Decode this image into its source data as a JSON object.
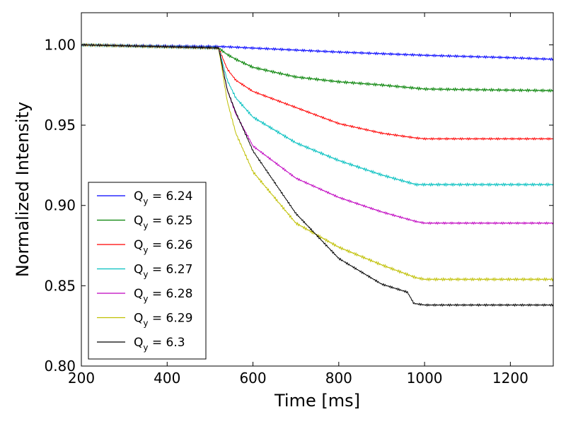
{
  "chart_data": {
    "type": "line",
    "title": "",
    "xlabel": "Time [ms]",
    "ylabel": "Normalized Intensity",
    "xlim": [
      200,
      1300
    ],
    "ylim": [
      0.8,
      1.02
    ],
    "xticks": [
      200,
      400,
      600,
      800,
      1000,
      1200
    ],
    "yticks": [
      0.8,
      0.85,
      0.9,
      0.95,
      1.0
    ],
    "xtick_labels": [
      "200",
      "400",
      "600",
      "800",
      "1000",
      "1200"
    ],
    "ytick_labels": [
      "0.80",
      "0.85",
      "0.90",
      "0.95",
      "1.00"
    ],
    "grid": false,
    "legend_position": "lower-left",
    "series": [
      {
        "name": "Q_y = 6.24",
        "label_main": "Q",
        "label_sub": "y",
        "label_value": " = 6.24",
        "color": "#0000ff",
        "noise": 0.0007,
        "x": [
          200,
          520,
          600,
          800,
          1000,
          1200,
          1300
        ],
        "y": [
          1.0,
          0.999,
          0.998,
          0.9955,
          0.9935,
          0.992,
          0.991
        ]
      },
      {
        "name": "Q_y = 6.25",
        "label_main": "Q",
        "label_sub": "y",
        "label_value": " = 6.25",
        "color": "#008000",
        "noise": 0.0008,
        "x": [
          200,
          520,
          540,
          560,
          600,
          700,
          800,
          900,
          980,
          1000,
          1200,
          1300
        ],
        "y": [
          1.0,
          0.998,
          0.994,
          0.991,
          0.986,
          0.98,
          0.977,
          0.975,
          0.973,
          0.9725,
          0.9718,
          0.9715
        ]
      },
      {
        "name": "Q_y = 6.26",
        "label_main": "Q",
        "label_sub": "y",
        "label_value": " = 6.26",
        "color": "#ff0000",
        "noise": 0.0006,
        "x": [
          200,
          520,
          540,
          560,
          600,
          700,
          800,
          900,
          980,
          1000,
          1200,
          1300
        ],
        "y": [
          1.0,
          0.998,
          0.985,
          0.978,
          0.971,
          0.961,
          0.951,
          0.945,
          0.942,
          0.9415,
          0.9415,
          0.9415
        ]
      },
      {
        "name": "Q_y = 6.27",
        "label_main": "Q",
        "label_sub": "y",
        "label_value": " = 6.27",
        "color": "#00bfbf",
        "noise": 0.0008,
        "x": [
          200,
          520,
          540,
          560,
          600,
          700,
          800,
          900,
          980,
          1000,
          1200,
          1300
        ],
        "y": [
          1.0,
          0.998,
          0.978,
          0.967,
          0.955,
          0.939,
          0.928,
          0.919,
          0.913,
          0.913,
          0.913,
          0.913
        ]
      },
      {
        "name": "Q_y = 6.28",
        "label_main": "Q",
        "label_sub": "y",
        "label_value": " = 6.28",
        "color": "#bf00bf",
        "noise": 0.0006,
        "x": [
          200,
          520,
          540,
          560,
          600,
          700,
          800,
          900,
          980,
          1000,
          1200,
          1300
        ],
        "y": [
          1.0,
          0.998,
          0.972,
          0.957,
          0.937,
          0.917,
          0.905,
          0.896,
          0.89,
          0.889,
          0.889,
          0.889
        ]
      },
      {
        "name": "Q_y = 6.29",
        "label_main": "Q",
        "label_sub": "y",
        "label_value": " = 6.29",
        "color": "#bfbf00",
        "noise": 0.0008,
        "x": [
          200,
          520,
          540,
          560,
          600,
          700,
          800,
          900,
          980,
          1000,
          1200,
          1300
        ],
        "y": [
          1.0,
          0.998,
          0.965,
          0.945,
          0.921,
          0.889,
          0.874,
          0.863,
          0.855,
          0.854,
          0.854,
          0.854
        ]
      },
      {
        "name": "Q_y = 6.3",
        "label_main": "Q",
        "label_sub": "y",
        "label_value": " = 6.3",
        "color": "#000000",
        "noise": 0.0006,
        "x": [
          200,
          520,
          540,
          560,
          600,
          700,
          800,
          900,
          960,
          975,
          1000,
          1200,
          1300
        ],
        "y": [
          1.0,
          0.998,
          0.972,
          0.958,
          0.934,
          0.895,
          0.867,
          0.851,
          0.846,
          0.839,
          0.838,
          0.838,
          0.838
        ]
      }
    ]
  }
}
